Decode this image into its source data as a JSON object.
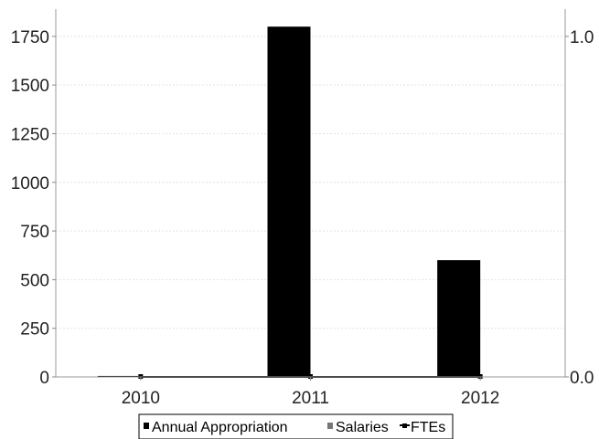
{
  "chart_data": {
    "type": "bar",
    "categories": [
      "2010",
      "2011",
      "2012"
    ],
    "series": [
      {
        "name": "Annual Appropriation",
        "type": "bar",
        "axis": "left",
        "values": [
          5,
          1800,
          600
        ],
        "color": "#000000"
      },
      {
        "name": "Salaries",
        "type": "bar",
        "axis": "left",
        "values": [
          0,
          0,
          0
        ],
        "color": "#777777"
      },
      {
        "name": "FTEs",
        "type": "line",
        "axis": "right",
        "values": [
          0,
          0,
          0
        ],
        "color": "#000000"
      }
    ],
    "y_left": {
      "min": 0,
      "max": 1890,
      "ticks": [
        0,
        250,
        500,
        750,
        1000,
        1250,
        1500,
        1750
      ],
      "tick_labels": [
        "0",
        "250",
        "500",
        "750",
        "1000",
        "1250",
        "1500",
        "1750"
      ]
    },
    "y_right": {
      "min": 0,
      "max": 1.08,
      "ticks": [
        0,
        1
      ],
      "tick_labels": [
        "0.0",
        "1.0"
      ]
    },
    "grid": true,
    "legend_position": "bottom"
  }
}
